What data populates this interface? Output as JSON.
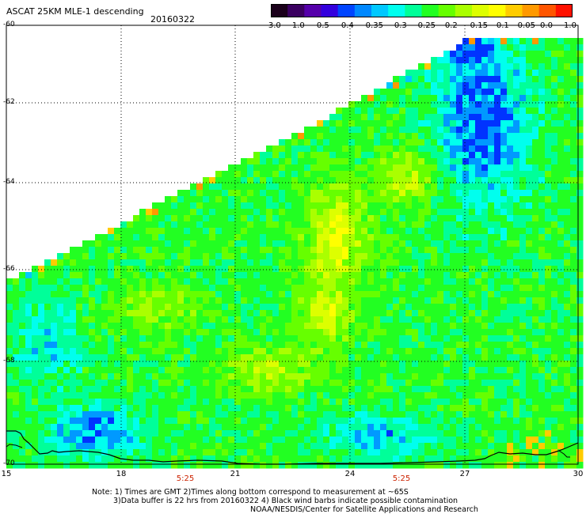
{
  "header": {
    "title": "ASCAT 25KM MLE-1 descending",
    "date": "20160322"
  },
  "colorbar": {
    "labels": [
      "-3.0",
      "-1.0",
      "-0.5",
      "-0.4",
      "-0.35",
      "-0.3",
      "-0.25",
      "-0.2",
      "-0.15",
      "-0.1",
      "-0.05",
      "0.0",
      "1.0"
    ],
    "colors": [
      "#1a001a",
      "#3a0060",
      "#5500aa",
      "#3300dd",
      "#0044ff",
      "#0088ff",
      "#00c8ff",
      "#00ffee",
      "#00ff99",
      "#22ff22",
      "#66ff00",
      "#aaff00",
      "#ddff00",
      "#ffff00",
      "#ffcc00",
      "#ff9900",
      "#ff5500",
      "#ff1100"
    ]
  },
  "axes": {
    "lat_labels": [
      "-60",
      "-62",
      "-64",
      "-66",
      "-68",
      "-70"
    ],
    "lon_labels": [
      "15",
      "18",
      "21",
      "24",
      "27",
      "30"
    ],
    "lat_range": [
      -70,
      -60
    ],
    "lon_range": [
      15,
      30
    ]
  },
  "times": [
    "5:25",
    "5:25"
  ],
  "notes": {
    "line1": "Note: 1) Times are GMT 2)Times along bottom correspond to measurement at ~65S",
    "line2": "3)Data buffer is 22 hrs from 20160322 4) Black wind barbs indicate possible contamination",
    "line3": "NOAA/NESDIS/Center for Satellite Applications and Research"
  }
}
